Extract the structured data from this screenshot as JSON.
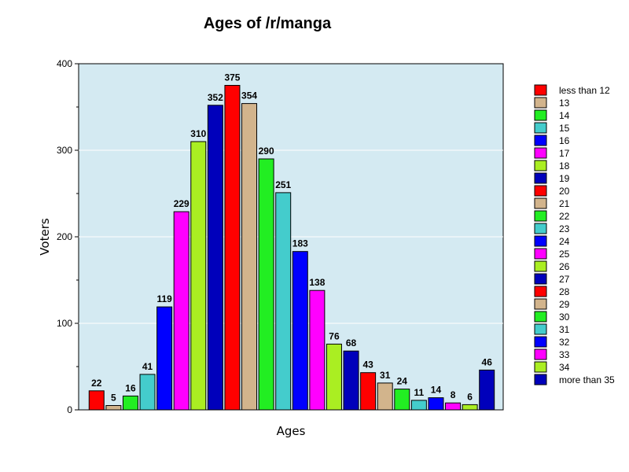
{
  "chart_data": {
    "type": "bar",
    "title": "Ages of /r/manga",
    "xlabel": "Ages",
    "ylabel": "Voters",
    "ylim": [
      0,
      400
    ],
    "yticks": [
      0,
      100,
      200,
      300,
      400
    ],
    "grid": true,
    "legend_position": "right",
    "categories": [
      "less than 12",
      "13",
      "14",
      "15",
      "16",
      "17",
      "18",
      "19",
      "20",
      "21",
      "22",
      "23",
      "24",
      "25",
      "26",
      "27",
      "28",
      "29",
      "30",
      "31",
      "32",
      "33",
      "34",
      "more than 35"
    ],
    "values": [
      22,
      5,
      16,
      41,
      119,
      229,
      310,
      352,
      375,
      354,
      290,
      251,
      183,
      138,
      76,
      68,
      43,
      31,
      24,
      11,
      14,
      8,
      6,
      46
    ],
    "colors": [
      "#ff0000",
      "#d2b48c",
      "#22ee22",
      "#44cccc",
      "#0000ff",
      "#ff00ff",
      "#aaee22",
      "#0000bb",
      "#ff0000",
      "#d2b48c",
      "#22ee22",
      "#44cccc",
      "#0000ff",
      "#ff00ff",
      "#aaee22",
      "#0000bb",
      "#ff0000",
      "#d2b48c",
      "#22ee22",
      "#44cccc",
      "#0000ff",
      "#ff00ff",
      "#aaee22",
      "#0000bb"
    ],
    "plot_background": "#d4eaf2"
  }
}
